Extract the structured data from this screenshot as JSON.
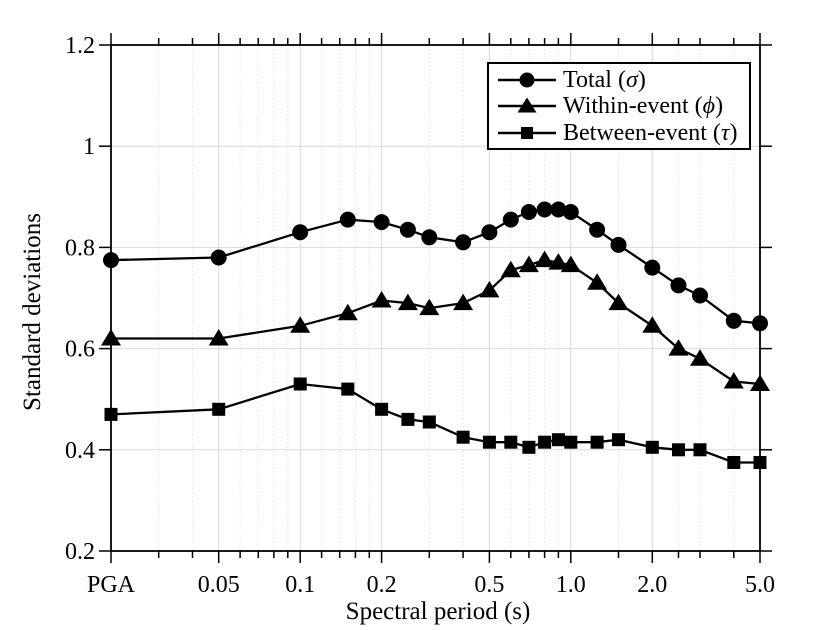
{
  "figure": {
    "background": "#ffffff",
    "axis_color": "#000000",
    "grid_major_color": "#d9d9d9",
    "grid_minor_color": "#e2e2e2",
    "series_color": "#000000"
  },
  "chart_data": {
    "type": "line",
    "title": "",
    "xlabel": "Spectral period (s)",
    "ylabel": "Standard deviations",
    "x_scale": "log",
    "xlim": [
      0.02,
      5.0
    ],
    "ylim": [
      0.2,
      1.2
    ],
    "grid": true,
    "legend_position": "top-right",
    "x_major_ticks": [
      {
        "value": 0.02,
        "label": "PGA"
      },
      {
        "value": 0.05,
        "label": "0.05"
      },
      {
        "value": 0.1,
        "label": "0.1"
      },
      {
        "value": 0.2,
        "label": "0.2"
      },
      {
        "value": 0.5,
        "label": "0.5"
      },
      {
        "value": 1.0,
        "label": "1.0"
      },
      {
        "value": 2.0,
        "label": "2.0"
      },
      {
        "value": 5.0,
        "label": "5.0"
      }
    ],
    "x_minor_ticks": [
      0.03,
      0.04,
      0.06,
      0.07,
      0.08,
      0.09,
      0.12,
      0.14,
      0.16,
      0.18,
      0.3,
      0.4,
      0.6,
      0.7,
      0.8,
      0.9,
      1.5,
      2.5,
      3.0,
      4.0
    ],
    "y_ticks": [
      {
        "value": 0.2,
        "label": "0.2"
      },
      {
        "value": 0.4,
        "label": "0.4"
      },
      {
        "value": 0.6,
        "label": "0.6"
      },
      {
        "value": 0.8,
        "label": "0.8"
      },
      {
        "value": 1.0,
        "label": "1"
      },
      {
        "value": 1.2,
        "label": "1.2"
      }
    ],
    "periods": [
      "PGA",
      0.05,
      0.1,
      0.15,
      0.2,
      0.25,
      0.3,
      0.4,
      0.5,
      0.6,
      0.7,
      0.8,
      0.9,
      1.0,
      1.25,
      1.5,
      2.0,
      2.5,
      3.0,
      4.0,
      5.0
    ],
    "x_plot": [
      0.02,
      0.05,
      0.1,
      0.15,
      0.2,
      0.25,
      0.3,
      0.4,
      0.5,
      0.6,
      0.7,
      0.8,
      0.9,
      1.0,
      1.25,
      1.5,
      2.0,
      2.5,
      3.0,
      4.0,
      5.0
    ],
    "series": [
      {
        "name": "Total (σ)",
        "marker": "circle",
        "values": [
          0.775,
          0.78,
          0.83,
          0.855,
          0.85,
          0.835,
          0.82,
          0.81,
          0.83,
          0.855,
          0.87,
          0.875,
          0.875,
          0.87,
          0.835,
          0.805,
          0.76,
          0.725,
          0.705,
          0.655,
          0.65
        ]
      },
      {
        "name": "Within-event (ϕ)",
        "marker": "triangle",
        "values": [
          0.62,
          0.62,
          0.645,
          0.67,
          0.695,
          0.69,
          0.68,
          0.69,
          0.715,
          0.755,
          0.765,
          0.775,
          0.77,
          0.765,
          0.73,
          0.69,
          0.645,
          0.6,
          0.58,
          0.535,
          0.53
        ]
      },
      {
        "name": "Between-event (τ)",
        "marker": "square",
        "values": [
          0.47,
          0.48,
          0.53,
          0.52,
          0.48,
          0.46,
          0.455,
          0.425,
          0.415,
          0.415,
          0.405,
          0.415,
          0.42,
          0.415,
          0.415,
          0.42,
          0.405,
          0.4,
          0.4,
          0.375,
          0.375
        ]
      }
    ],
    "legend": {
      "entries": [
        {
          "prefix": "Total (",
          "symbol": "σ",
          "suffix": ")",
          "marker": "circle"
        },
        {
          "prefix": "Within-event (",
          "symbol": "ϕ",
          "suffix": ")",
          "marker": "triangle"
        },
        {
          "prefix": "Between-event (",
          "symbol": "τ",
          "suffix": ")",
          "marker": "square"
        }
      ]
    }
  }
}
